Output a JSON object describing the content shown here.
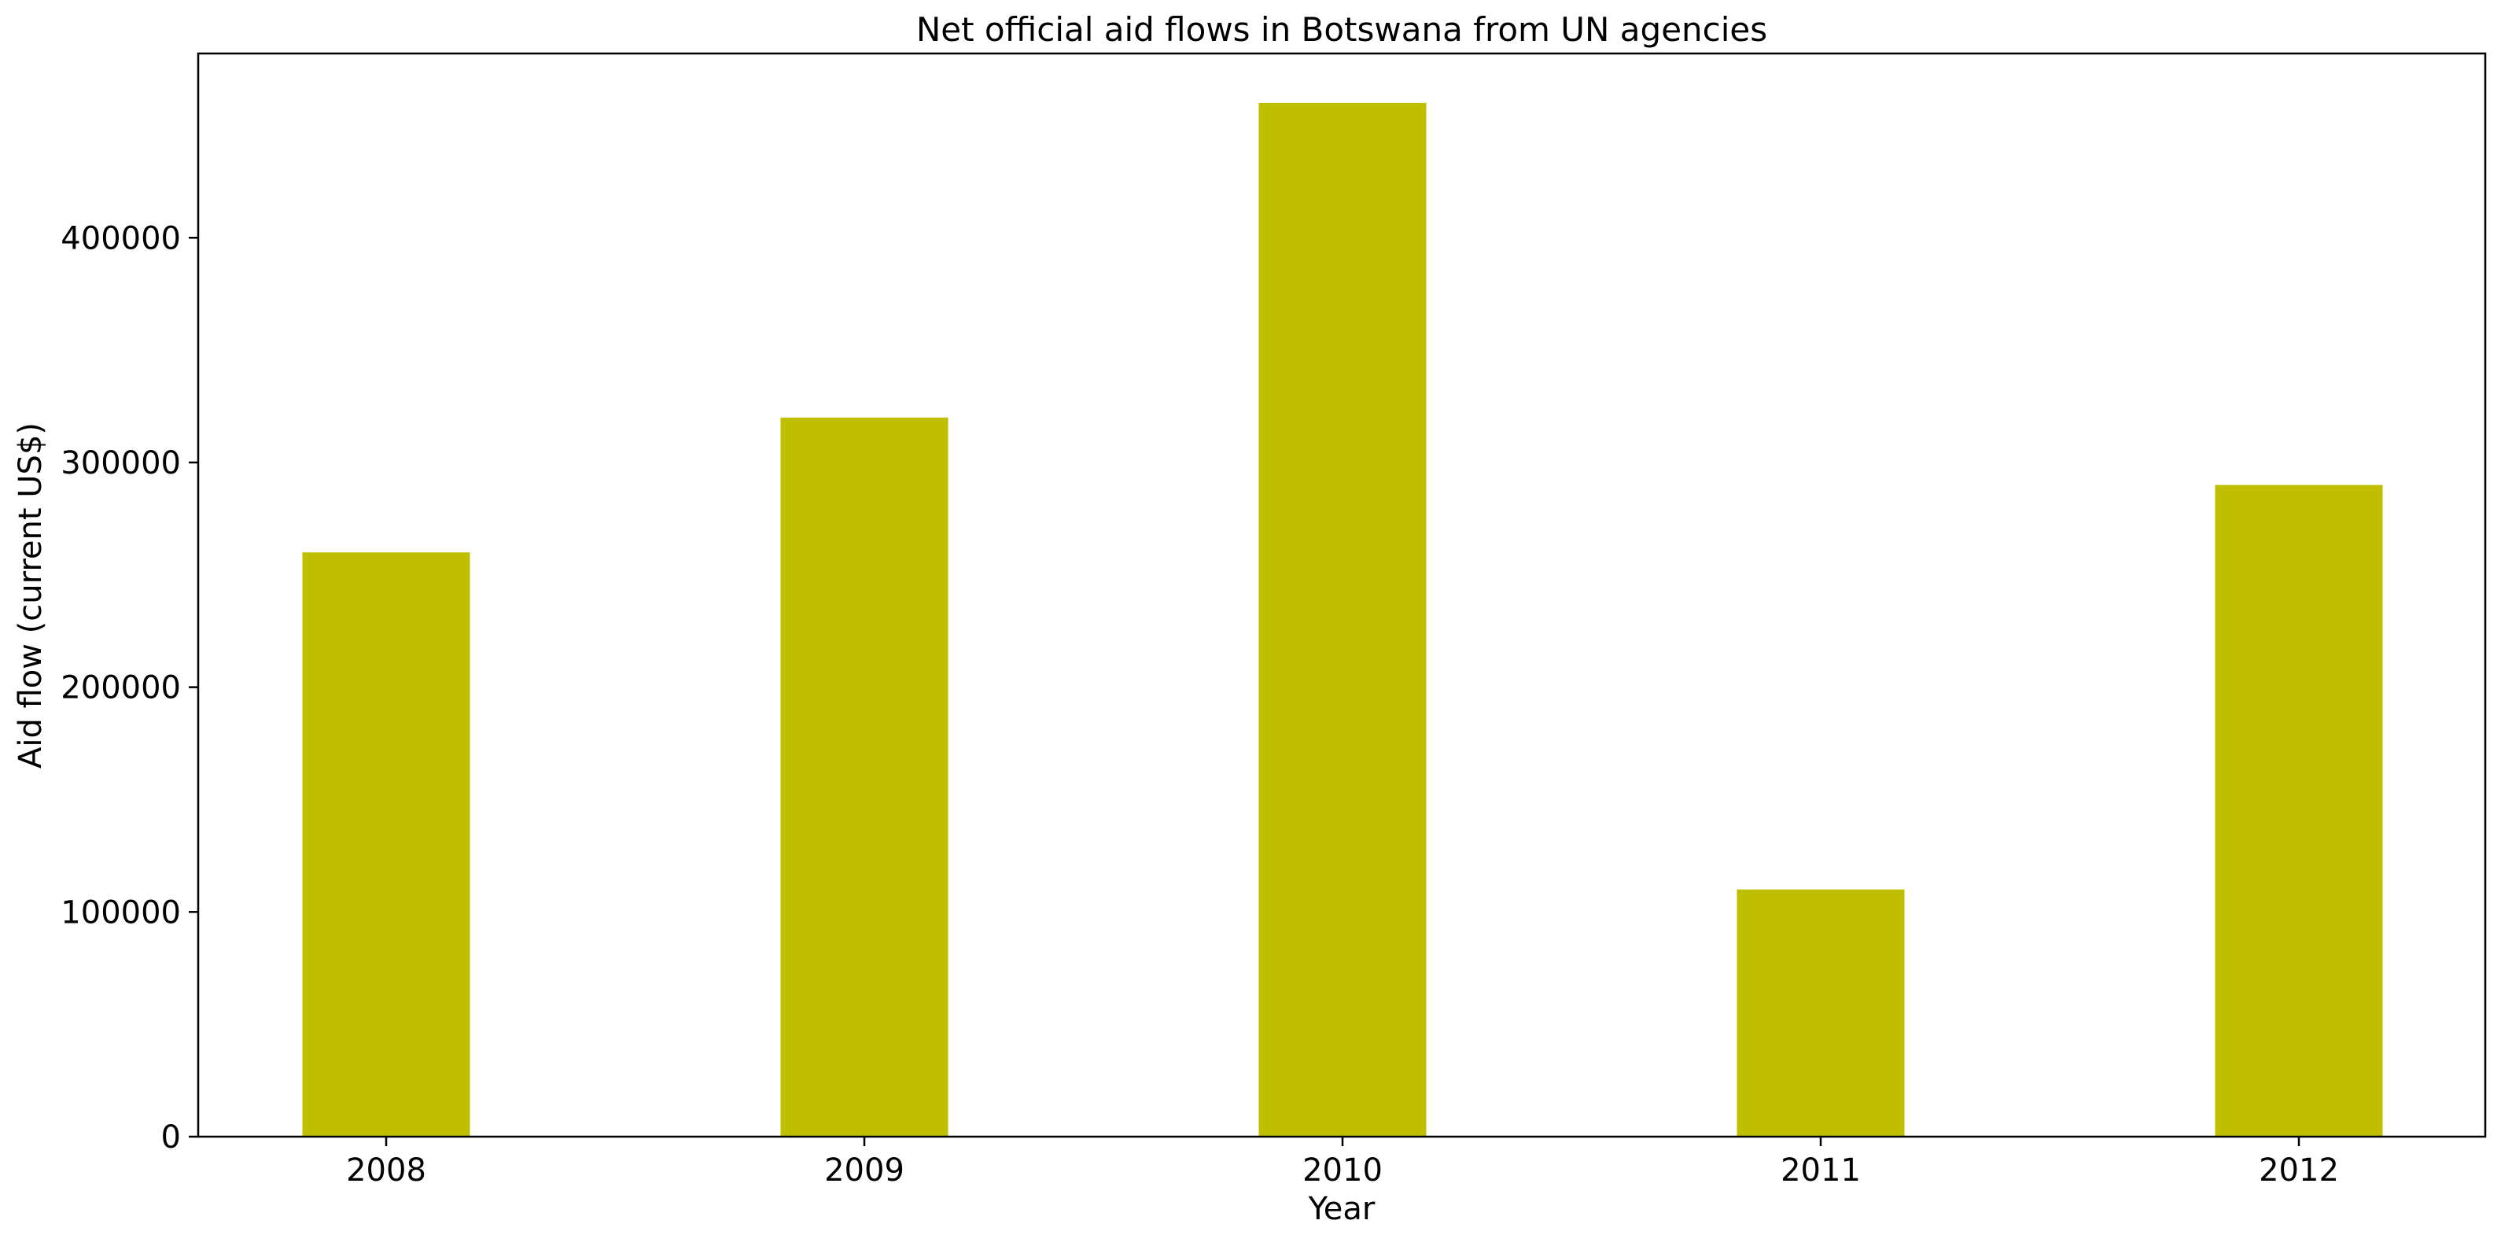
{
  "chart_data": {
    "type": "bar",
    "title": "Net official aid flows in Botswana from UN agencies",
    "xlabel": "Year",
    "ylabel": "Aid flow (current US$)",
    "categories": [
      "2008",
      "2009",
      "2010",
      "2011",
      "2012"
    ],
    "values": [
      260000,
      320000,
      460000,
      110000,
      290000
    ],
    "ylim": [
      0,
      482000
    ],
    "yticks": [
      0,
      100000,
      200000,
      300000,
      400000
    ],
    "ytick_labels": [
      "0",
      "100000",
      "200000",
      "300000",
      "400000"
    ],
    "grid": false,
    "legend": "none",
    "bar_color": "#bfbf00"
  }
}
